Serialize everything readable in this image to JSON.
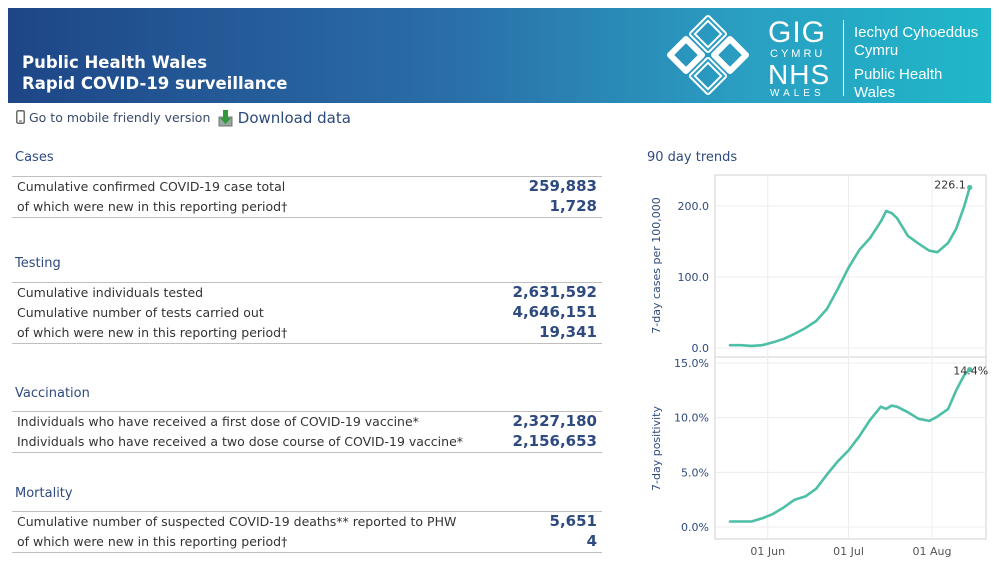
{
  "header": {
    "title_line1": "Public Health Wales",
    "title_line2": "Rapid COVID-19 surveillance",
    "logo": {
      "gig": "GIG",
      "cymru": "CYMRU",
      "nhs": "NHS",
      "wales": "WALES",
      "org_welsh_1": "Iechyd Cyhoeddus",
      "org_welsh_2": "Cymru",
      "org_en_1": "Public Health",
      "org_en_2": "Wales"
    }
  },
  "toolbar": {
    "mobile_label": "Go to mobile friendly version",
    "download_label": "Download data",
    "mobile_icon": "phone-icon",
    "download_icon": "download-icon"
  },
  "sections": {
    "cases": {
      "title": "Cases",
      "rows": [
        {
          "label": "Cumulative confirmed COVID-19 case total",
          "value": "259,883"
        },
        {
          "label": "of which were new in this reporting period†",
          "value": "1,728"
        }
      ]
    },
    "testing": {
      "title": "Testing",
      "rows": [
        {
          "label": "Cumulative individuals tested",
          "value": "2,631,592"
        },
        {
          "label": "Cumulative number of tests carried out",
          "value": "4,646,151"
        },
        {
          "label": "of which were new in this reporting period†",
          "value": "19,341"
        }
      ]
    },
    "vaccination": {
      "title": "Vaccination",
      "rows": [
        {
          "label": "Individuals who have received a first dose of COVID-19 vaccine*",
          "value": "2,327,180"
        },
        {
          "label": "Individuals who have received a two dose course of COVID-19 vaccine*",
          "value": "2,156,653"
        }
      ]
    },
    "mortality": {
      "title": "Mortality",
      "rows": [
        {
          "label": "Cumulative number of suspected COVID-19 deaths** reported to PHW",
          "value": "5,651"
        },
        {
          "label": "of which were new in this reporting period†",
          "value": "4"
        }
      ]
    }
  },
  "trends_title": "90 day trends",
  "colors": {
    "line": "#4cbfa6",
    "label": "#2e4a7e",
    "banner_start": "#1e4687",
    "banner_end": "#1fb7c9"
  },
  "chart_data": [
    {
      "type": "line",
      "ylabel": "7-day cases per 100,000",
      "yticks": [
        "0.0",
        "100.0",
        "200.0"
      ],
      "ylim": [
        0,
        240
      ],
      "end_label": "226.1",
      "grid": true,
      "x": [
        "2021-05-18",
        "2021-05-22",
        "2021-05-26",
        "2021-05-30",
        "2021-06-03",
        "2021-06-07",
        "2021-06-11",
        "2021-06-15",
        "2021-06-19",
        "2021-06-23",
        "2021-06-27",
        "2021-07-01",
        "2021-07-05",
        "2021-07-09",
        "2021-07-13",
        "2021-07-15",
        "2021-07-17",
        "2021-07-19",
        "2021-07-23",
        "2021-07-27",
        "2021-07-31",
        "2021-08-03",
        "2021-08-07",
        "2021-08-10",
        "2021-08-13",
        "2021-08-15"
      ],
      "values": [
        4,
        4,
        3,
        4,
        8,
        13,
        20,
        28,
        38,
        55,
        83,
        113,
        138,
        155,
        178,
        193,
        190,
        183,
        158,
        147,
        137,
        135,
        148,
        168,
        200,
        226.1
      ]
    },
    {
      "type": "line",
      "ylabel": "7-day positivity",
      "yticks": [
        "0.0%",
        "5.0%",
        "10.0%",
        "15.0%"
      ],
      "ylim": [
        0,
        15
      ],
      "end_label": "14.4%",
      "grid": true,
      "x": [
        "2021-05-18",
        "2021-05-22",
        "2021-05-26",
        "2021-05-30",
        "2021-06-03",
        "2021-06-07",
        "2021-06-11",
        "2021-06-15",
        "2021-06-19",
        "2021-06-23",
        "2021-06-27",
        "2021-07-01",
        "2021-07-05",
        "2021-07-09",
        "2021-07-13",
        "2021-07-15",
        "2021-07-17",
        "2021-07-19",
        "2021-07-23",
        "2021-07-27",
        "2021-07-31",
        "2021-08-03",
        "2021-08-07",
        "2021-08-10",
        "2021-08-13",
        "2021-08-15"
      ],
      "values": [
        0.5,
        0.5,
        0.5,
        0.8,
        1.2,
        1.8,
        2.5,
        2.8,
        3.5,
        4.8,
        6.0,
        7.0,
        8.3,
        9.8,
        11.0,
        10.8,
        11.1,
        11.0,
        10.5,
        9.9,
        9.7,
        10.1,
        10.8,
        12.5,
        13.9,
        14.4
      ]
    }
  ],
  "x_ticks": [
    {
      "date": "2021-06-01",
      "label": "01 Jun"
    },
    {
      "date": "2021-07-01",
      "label": "01 Jul"
    },
    {
      "date": "2021-08-01",
      "label": "01 Aug"
    }
  ]
}
